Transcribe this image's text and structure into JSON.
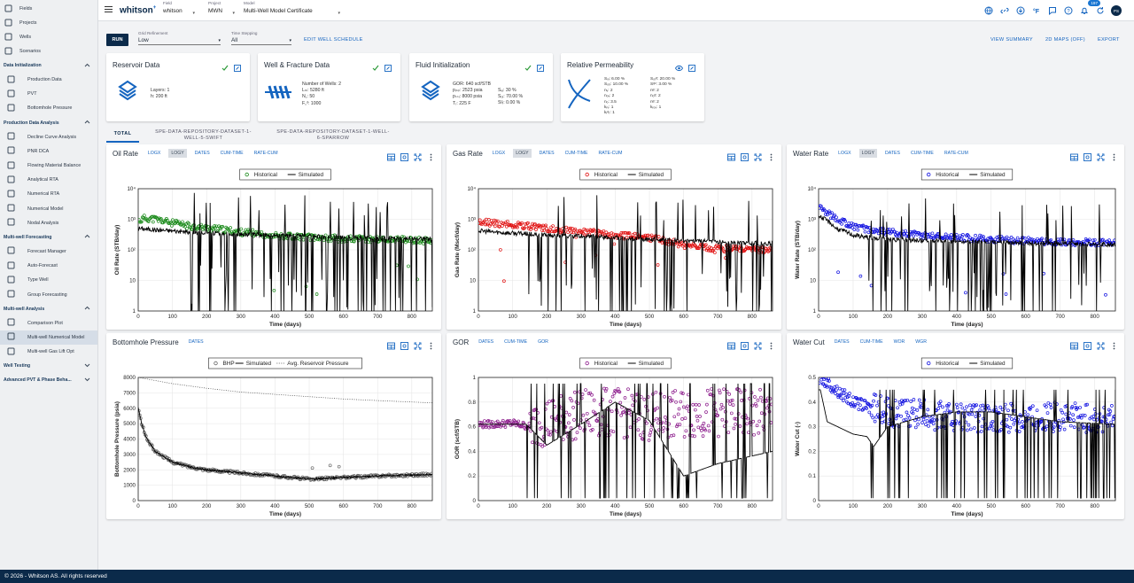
{
  "sidebar": {
    "top": [
      {
        "label": "Fields",
        "icon": "globe-icon"
      },
      {
        "label": "Projects",
        "icon": "projects-icon"
      },
      {
        "label": "Wells",
        "icon": "well-icon"
      },
      {
        "label": "Scenarios",
        "icon": "scenarios-icon"
      }
    ],
    "sections": [
      {
        "title": "Data Initialization",
        "items": [
          "Production Data",
          "PVT",
          "Bottomhole Pressure"
        ]
      },
      {
        "title": "Production Data Analysis",
        "items": [
          "Decline Curve Analysis",
          "PNR DCA",
          "Flowing Material Balance",
          "Analytical RTA",
          "Numerical RTA",
          "Numerical Model",
          "Nodal Analysis"
        ]
      },
      {
        "title": "Multi-well Forecasting",
        "items": [
          "Forecast Manager",
          "Auto-Forecast",
          "Type Well",
          "Group Forecasting"
        ]
      },
      {
        "title": "Multi-well Analysis",
        "items": [
          "Comparison Plot",
          "Multi-well Numerical Model",
          "Multi-well Gas Lift Opt"
        ]
      },
      {
        "title": "Well Testing",
        "items": []
      },
      {
        "title": "Advanced PVT & Phase Beha...",
        "items": []
      }
    ]
  },
  "topbar": {
    "brand": "whitson",
    "brand_sup": "+",
    "field_label": "Field",
    "field_value": "whitson",
    "project_label": "Project",
    "project_value": "MWN",
    "model_label": "Model",
    "model_value": "Multi-Well Model Certificate",
    "notification_count": "197",
    "user_initials": "PS"
  },
  "controls": {
    "run_label": "RUN",
    "grid_label": "Grid Refinement",
    "grid_value": "Low",
    "time_label": "Time Stepping",
    "time_value": "All",
    "edit_schedule": "EDIT WELL SCHEDULE",
    "view_summary": "VIEW SUMMARY",
    "maps": "2D MAPS (OFF)",
    "export": "EXPORT"
  },
  "cards": {
    "reservoir": {
      "title": "Reservoir Data",
      "lines": [
        "Layers:   1",
        "h:   200 ft"
      ]
    },
    "well": {
      "title": "Well & Fracture Data",
      "lines": [
        "Number of Wells:  2",
        "Lₘ:   5280 ft",
        "N꜀:   50",
        "F꜀ᵈ:   1000"
      ]
    },
    "fluid": {
      "title": "Fluid Initialization",
      "col1": [
        "GOR:   640 scf/STB",
        "pᵢₙᵢₜ:  2523 psia",
        "pₛₛᵢ:  8000 psia",
        "Tᵣ:   225 F"
      ],
      "col2": [
        "Sᵥᵢ:  30 %",
        "Sₒᵢ:  70.00 %",
        "Sᵍᵢ:  0.00 %"
      ]
    },
    "relperm": {
      "title": "Relative Permeability",
      "col1": [
        "Sᵥᵢ:   6.00 %",
        "Sₒᵢᵣ:  10.00 %",
        "nᵥ:   2",
        "nₒᵥ:   2",
        "nₒ:   3.5",
        "kᵣᵥ:   1",
        "kᵣᵍᵣ:  1"
      ],
      "col2": [
        "Sₒᵣᵍ:  20.00 %",
        "Sᵍᶜ:   3.00 %",
        "nᵍ:   2",
        "nₒᵍ:   2",
        "nᵍ:   2",
        "kᵣₒᵥ:   1"
      ]
    }
  },
  "tabs": [
    "TOTAL",
    "SPE-DATA-REPOSITORY-DATASET-1-WELL-5-SWIFT",
    "SPE-DATA-REPOSITORY-DATASET-1-WELL-6-SPARROW"
  ],
  "panels": {
    "oil": {
      "title": "Oil Rate",
      "opts": [
        "LOGX",
        "LOGY",
        "DATES",
        "CUM-TIME",
        "RATE-CUM"
      ],
      "active": "LOGY",
      "ylabel": "Oil Rate (STB/day)",
      "xlabel": "Time (days)",
      "legend": [
        "Historical",
        "Simulated"
      ]
    },
    "gas": {
      "title": "Gas Rate",
      "opts": [
        "LOGX",
        "LOGY",
        "DATES",
        "CUM-TIME",
        "RATE-CUM"
      ],
      "active": "LOGY",
      "ylabel": "Gas Rate (Mscf/day)",
      "xlabel": "Time (days)",
      "legend": [
        "Historical",
        "Simulated"
      ]
    },
    "water": {
      "title": "Water Rate",
      "opts": [
        "LOGX",
        "LOGY",
        "DATES",
        "CUM-TIME",
        "RATE-CUM"
      ],
      "active": "LOGY",
      "ylabel": "Water Rate (STB/day)",
      "xlabel": "Time (days)",
      "legend": [
        "Historical",
        "Simulated"
      ]
    },
    "bhp": {
      "title": "Bottomhole Pressure",
      "opts": [
        "DATES"
      ],
      "active": "",
      "ylabel": "Bottomhole Pressure (psia)",
      "xlabel": "Time (days)",
      "legend": [
        "BHP",
        "Simulated",
        "Avg. Reservoir Pressure"
      ]
    },
    "gor": {
      "title": "GOR",
      "opts": [
        "DATES",
        "CUM-TIME",
        "GOR"
      ],
      "active": "",
      "ylabel": "GOR (scf/STB)",
      "xlabel": "Time (days)",
      "legend": [
        "Historical",
        "Simulated"
      ]
    },
    "wcut": {
      "title": "Water Cut",
      "opts": [
        "DATES",
        "CUM-TIME",
        "WOR",
        "WGR"
      ],
      "active": "",
      "ylabel": "Water Cut (-)",
      "xlabel": "Time (days)",
      "legend": [
        "Historical",
        "Simulated"
      ]
    }
  },
  "colors": {
    "oil": "#1a8a1a",
    "gas": "#e01010",
    "water": "#1010e0",
    "gor": "#8b1a8b",
    "bhp": "#777777",
    "navy": "#0b2a4a",
    "accent": "#1565c0"
  },
  "footer": "© 2026 - Whitson AS. All rights reserved",
  "chart_data": [
    {
      "type": "scatter",
      "title": "Oil Rate",
      "xlabel": "Time (days)",
      "ylabel": "Oil Rate (STB/day)",
      "log_y": true,
      "xlim": [
        0,
        860
      ],
      "ylim": [
        1,
        10000
      ],
      "x_ticks": [
        0,
        100,
        200,
        300,
        400,
        500,
        600,
        700,
        800
      ],
      "y_tick_labels": [
        "1",
        "10",
        "10²",
        "10³",
        "10⁴"
      ],
      "series": [
        {
          "name": "Historical",
          "x": [
            5,
            20,
            50,
            100,
            150,
            200,
            300,
            400,
            500,
            600,
            700,
            860
          ],
          "y": [
            900,
            1100,
            1000,
            750,
            600,
            520,
            380,
            300,
            260,
            230,
            220,
            200
          ]
        },
        {
          "name": "Simulated",
          "x": [
            5,
            50,
            100,
            150,
            200,
            300,
            400,
            500,
            600,
            700,
            860
          ],
          "y": [
            500,
            450,
            420,
            380,
            350,
            320,
            300,
            280,
            250,
            240,
            220
          ]
        }
      ]
    },
    {
      "type": "scatter",
      "title": "Gas Rate",
      "xlabel": "Time (days)",
      "ylabel": "Gas Rate (Mscf/day)",
      "log_y": true,
      "xlim": [
        0,
        860
      ],
      "ylim": [
        1,
        10000
      ],
      "x_ticks": [
        0,
        100,
        200,
        300,
        400,
        500,
        600,
        700,
        800
      ],
      "y_tick_labels": [
        "1",
        "10",
        "10²",
        "10³",
        "10⁴"
      ],
      "series": [
        {
          "name": "Historical",
          "x": [
            5,
            50,
            100,
            150,
            200,
            300,
            400,
            500,
            600,
            700,
            860
          ],
          "y": [
            800,
            750,
            650,
            600,
            500,
            400,
            300,
            250,
            140,
            110,
            100
          ]
        },
        {
          "name": "Simulated",
          "x": [
            5,
            50,
            100,
            150,
            200,
            300,
            400,
            500,
            600,
            700,
            860
          ],
          "y": [
            420,
            380,
            350,
            330,
            300,
            280,
            250,
            220,
            200,
            180,
            160
          ]
        }
      ]
    },
    {
      "type": "scatter",
      "title": "Water Rate",
      "xlabel": "Time (days)",
      "ylabel": "Water Rate (STB/day)",
      "log_y": true,
      "xlim": [
        0,
        860
      ],
      "ylim": [
        1,
        10000
      ],
      "x_ticks": [
        0,
        100,
        200,
        300,
        400,
        500,
        600,
        700,
        800
      ],
      "y_tick_labels": [
        "1",
        "10",
        "10²",
        "10³",
        "10⁴"
      ],
      "series": [
        {
          "name": "Historical",
          "x": [
            5,
            20,
            50,
            100,
            150,
            200,
            300,
            400,
            500,
            600,
            700,
            860
          ],
          "y": [
            3000,
            1800,
            1000,
            600,
            450,
            380,
            300,
            260,
            220,
            200,
            180,
            170
          ]
        },
        {
          "name": "Simulated",
          "x": [
            5,
            50,
            100,
            150,
            200,
            300,
            400,
            500,
            600,
            700,
            860
          ],
          "y": [
            1200,
            500,
            300,
            250,
            220,
            200,
            190,
            180,
            170,
            160,
            150
          ]
        }
      ]
    },
    {
      "type": "line",
      "title": "Bottomhole Pressure",
      "xlabel": "Time (days)",
      "ylabel": "Bottomhole Pressure (psia)",
      "xlim": [
        0,
        860
      ],
      "ylim": [
        0,
        8000
      ],
      "x_ticks": [
        0,
        100,
        200,
        300,
        400,
        500,
        600,
        700,
        800
      ],
      "y_ticks": [
        0,
        1000,
        2000,
        3000,
        4000,
        5000,
        6000,
        7000,
        8000
      ],
      "series": [
        {
          "name": "BHP",
          "x": [
            0,
            10,
            25,
            50,
            100,
            150,
            200,
            300,
            400,
            500,
            600,
            700,
            860
          ],
          "y": [
            6000,
            5000,
            4000,
            3200,
            2500,
            2200,
            2000,
            1800,
            1600,
            1400,
            1500,
            1600,
            1700
          ]
        },
        {
          "name": "Simulated",
          "x": [
            0,
            10,
            25,
            50,
            100,
            150,
            200,
            300,
            400,
            500,
            600,
            700,
            860
          ],
          "y": [
            6000,
            5000,
            4000,
            3200,
            2500,
            2200,
            2000,
            1800,
            1600,
            1400,
            1500,
            1600,
            1700
          ]
        },
        {
          "name": "Avg. Reservoir Pressure",
          "x": [
            0,
            100,
            200,
            300,
            400,
            500,
            600,
            700,
            860
          ],
          "y": [
            8000,
            7600,
            7300,
            7050,
            6900,
            6750,
            6600,
            6500,
            6350
          ]
        }
      ]
    },
    {
      "type": "scatter",
      "title": "GOR",
      "xlabel": "Time (days)",
      "ylabel": "GOR (scf/STB)",
      "xlim": [
        0,
        860
      ],
      "ylim": [
        0,
        1
      ],
      "x_ticks": [
        0,
        100,
        200,
        300,
        400,
        500,
        600,
        700,
        800
      ],
      "y_ticks": [
        0,
        0.2,
        0.4,
        0.6,
        0.8,
        1
      ],
      "series": [
        {
          "name": "Historical",
          "x": [
            5,
            50,
            100,
            150,
            200,
            300,
            400,
            500,
            600,
            700,
            860
          ],
          "y": [
            0.62,
            0.62,
            0.63,
            0.6,
            0.65,
            0.7,
            0.72,
            0.68,
            0.7,
            0.72,
            0.7
          ]
        },
        {
          "name": "Simulated",
          "x": [
            5,
            100,
            140,
            200,
            300,
            400,
            500,
            600,
            700,
            860
          ],
          "y": [
            0.62,
            0.62,
            0.62,
            0.45,
            0.62,
            0.8,
            0.65,
            0.2,
            0.3,
            0.4
          ]
        }
      ]
    },
    {
      "type": "scatter",
      "title": "Water Cut",
      "xlabel": "Time (days)",
      "ylabel": "Water Cut (-)",
      "xlim": [
        0,
        860
      ],
      "ylim": [
        0,
        0.5
      ],
      "x_ticks": [
        0,
        100,
        200,
        300,
        400,
        500,
        600,
        700,
        800
      ],
      "y_ticks": [
        0,
        0.1,
        0.2,
        0.3,
        0.4,
        0.5
      ],
      "series": [
        {
          "name": "Historical",
          "x": [
            5,
            50,
            100,
            150,
            200,
            300,
            400,
            500,
            600,
            700,
            860
          ],
          "y": [
            0.5,
            0.45,
            0.4,
            0.38,
            0.36,
            0.35,
            0.34,
            0.33,
            0.34,
            0.34,
            0.33
          ]
        },
        {
          "name": "Simulated",
          "x": [
            5,
            25,
            100,
            140,
            160,
            200,
            300,
            400,
            500,
            600,
            700,
            860
          ],
          "y": [
            0.45,
            0.32,
            0.27,
            0.26,
            0.22,
            0.3,
            0.34,
            0.36,
            0.36,
            0.34,
            0.32,
            0.31
          ]
        }
      ]
    }
  ]
}
